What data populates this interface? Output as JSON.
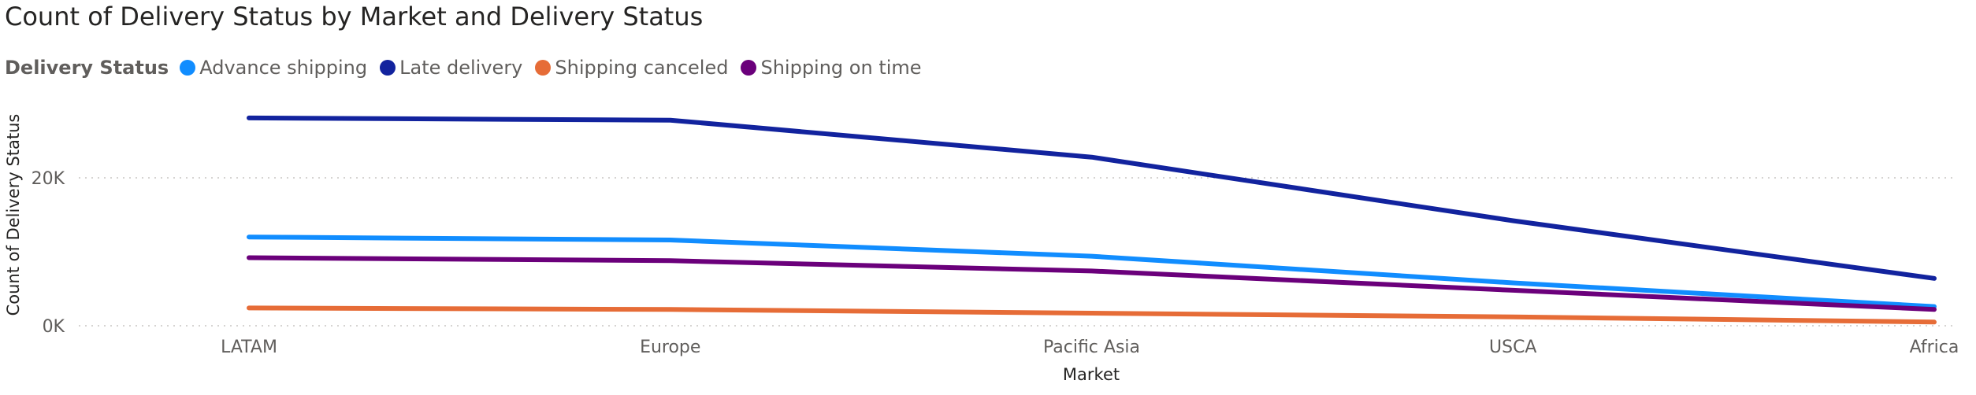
{
  "chart_data": {
    "type": "line",
    "title": "Count of Delivery Status by Market and Delivery Status",
    "legend_title": "Delivery Status",
    "legend_position": "top-left",
    "xlabel": "Market",
    "ylabel": "Count of Delivery Status",
    "categories": [
      "LATAM",
      "Europe",
      "Pacific Asia",
      "USCA",
      "Africa"
    ],
    "ylim": [
      0,
      30000
    ],
    "yticks": [
      {
        "value": 0,
        "label": "0K"
      },
      {
        "value": 20000,
        "label": "20K"
      }
    ],
    "grid": true,
    "series": [
      {
        "name": "Advance shipping",
        "color": "#118DFF",
        "values": [
          12000,
          11600,
          9400,
          5800,
          2600
        ]
      },
      {
        "name": "Late delivery",
        "color": "#12239E",
        "values": [
          28100,
          27800,
          22800,
          14200,
          6400
        ]
      },
      {
        "name": "Shipping canceled",
        "color": "#E66C37",
        "values": [
          2400,
          2200,
          1700,
          1200,
          500
        ]
      },
      {
        "name": "Shipping on time",
        "color": "#6B007B",
        "values": [
          9200,
          8800,
          7400,
          4800,
          2200
        ]
      }
    ]
  }
}
